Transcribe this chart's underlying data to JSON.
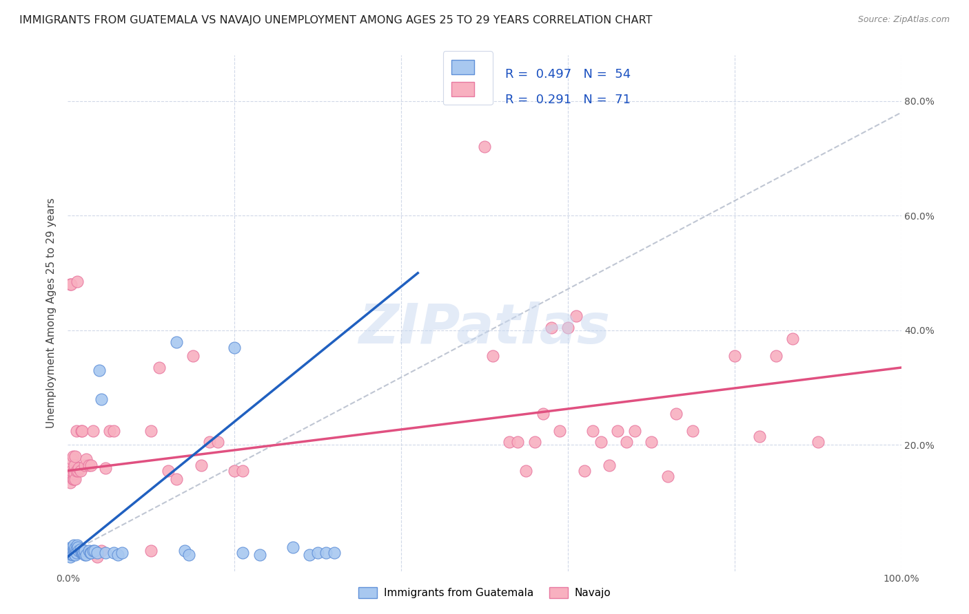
{
  "title": "IMMIGRANTS FROM GUATEMALA VS NAVAJO UNEMPLOYMENT AMONG AGES 25 TO 29 YEARS CORRELATION CHART",
  "source": "Source: ZipAtlas.com",
  "ylabel": "Unemployment Among Ages 25 to 29 years",
  "xlim": [
    0,
    1.0
  ],
  "ylim": [
    -0.02,
    0.88
  ],
  "R_blue": 0.497,
  "N_blue": 54,
  "R_pink": 0.291,
  "N_pink": 71,
  "blue_color": "#a8c8f0",
  "pink_color": "#f8b0c0",
  "blue_edge_color": "#6090d8",
  "pink_edge_color": "#e878a0",
  "blue_line_color": "#2060c0",
  "pink_line_color": "#e05080",
  "dash_line_color": "#b0b8c8",
  "watermark": "ZIPatlas",
  "watermark_color": "#c8d8f0",
  "background_color": "#ffffff",
  "grid_color": "#d0d8e8",
  "blue_scatter": [
    [
      0.001,
      0.015
    ],
    [
      0.002,
      0.01
    ],
    [
      0.002,
      0.02
    ],
    [
      0.003,
      0.01
    ],
    [
      0.003,
      0.005
    ],
    [
      0.004,
      0.01
    ],
    [
      0.004,
      0.015
    ],
    [
      0.005,
      0.02
    ],
    [
      0.005,
      0.01
    ],
    [
      0.006,
      0.015
    ],
    [
      0.006,
      0.008
    ],
    [
      0.007,
      0.02
    ],
    [
      0.007,
      0.025
    ],
    [
      0.008,
      0.015
    ],
    [
      0.008,
      0.01
    ],
    [
      0.009,
      0.02
    ],
    [
      0.009,
      0.008
    ],
    [
      0.01,
      0.018
    ],
    [
      0.01,
      0.012
    ],
    [
      0.011,
      0.025
    ],
    [
      0.012,
      0.022
    ],
    [
      0.013,
      0.015
    ],
    [
      0.015,
      0.018
    ],
    [
      0.016,
      0.012
    ],
    [
      0.017,
      0.012
    ],
    [
      0.018,
      0.012
    ],
    [
      0.018,
      0.015
    ],
    [
      0.019,
      0.012
    ],
    [
      0.02,
      0.008
    ],
    [
      0.02,
      0.015
    ],
    [
      0.022,
      0.008
    ],
    [
      0.025,
      0.015
    ],
    [
      0.027,
      0.012
    ],
    [
      0.028,
      0.012
    ],
    [
      0.03,
      0.015
    ],
    [
      0.032,
      0.015
    ],
    [
      0.035,
      0.012
    ],
    [
      0.038,
      0.33
    ],
    [
      0.04,
      0.28
    ],
    [
      0.045,
      0.012
    ],
    [
      0.055,
      0.012
    ],
    [
      0.06,
      0.008
    ],
    [
      0.065,
      0.012
    ],
    [
      0.13,
      0.38
    ],
    [
      0.14,
      0.015
    ],
    [
      0.145,
      0.008
    ],
    [
      0.2,
      0.37
    ],
    [
      0.21,
      0.012
    ],
    [
      0.23,
      0.008
    ],
    [
      0.27,
      0.022
    ],
    [
      0.29,
      0.008
    ],
    [
      0.3,
      0.012
    ],
    [
      0.31,
      0.012
    ],
    [
      0.32,
      0.012
    ]
  ],
  "pink_scatter": [
    [
      0.001,
      0.145
    ],
    [
      0.002,
      0.16
    ],
    [
      0.003,
      0.135
    ],
    [
      0.003,
      0.48
    ],
    [
      0.004,
      0.48
    ],
    [
      0.005,
      0.155
    ],
    [
      0.005,
      0.175
    ],
    [
      0.006,
      0.14
    ],
    [
      0.006,
      0.18
    ],
    [
      0.007,
      0.14
    ],
    [
      0.007,
      0.155
    ],
    [
      0.008,
      0.15
    ],
    [
      0.008,
      0.165
    ],
    [
      0.009,
      0.14
    ],
    [
      0.009,
      0.18
    ],
    [
      0.01,
      0.155
    ],
    [
      0.01,
      0.225
    ],
    [
      0.011,
      0.485
    ],
    [
      0.012,
      0.155
    ],
    [
      0.013,
      0.16
    ],
    [
      0.015,
      0.155
    ],
    [
      0.016,
      0.225
    ],
    [
      0.017,
      0.225
    ],
    [
      0.02,
      0.165
    ],
    [
      0.022,
      0.175
    ],
    [
      0.025,
      0.165
    ],
    [
      0.028,
      0.165
    ],
    [
      0.03,
      0.225
    ],
    [
      0.035,
      0.005
    ],
    [
      0.04,
      0.015
    ],
    [
      0.045,
      0.16
    ],
    [
      0.05,
      0.225
    ],
    [
      0.055,
      0.225
    ],
    [
      0.1,
      0.225
    ],
    [
      0.1,
      0.015
    ],
    [
      0.11,
      0.335
    ],
    [
      0.12,
      0.155
    ],
    [
      0.13,
      0.14
    ],
    [
      0.15,
      0.355
    ],
    [
      0.16,
      0.165
    ],
    [
      0.17,
      0.205
    ],
    [
      0.18,
      0.205
    ],
    [
      0.2,
      0.155
    ],
    [
      0.21,
      0.155
    ],
    [
      0.5,
      0.72
    ],
    [
      0.51,
      0.355
    ],
    [
      0.53,
      0.205
    ],
    [
      0.54,
      0.205
    ],
    [
      0.55,
      0.155
    ],
    [
      0.56,
      0.205
    ],
    [
      0.57,
      0.255
    ],
    [
      0.58,
      0.405
    ],
    [
      0.59,
      0.225
    ],
    [
      0.6,
      0.405
    ],
    [
      0.61,
      0.425
    ],
    [
      0.62,
      0.155
    ],
    [
      0.63,
      0.225
    ],
    [
      0.64,
      0.205
    ],
    [
      0.65,
      0.165
    ],
    [
      0.66,
      0.225
    ],
    [
      0.67,
      0.205
    ],
    [
      0.68,
      0.225
    ],
    [
      0.7,
      0.205
    ],
    [
      0.72,
      0.145
    ],
    [
      0.73,
      0.255
    ],
    [
      0.75,
      0.225
    ],
    [
      0.8,
      0.355
    ],
    [
      0.83,
      0.215
    ],
    [
      0.85,
      0.355
    ],
    [
      0.87,
      0.385
    ],
    [
      0.9,
      0.205
    ]
  ],
  "blue_trendline": [
    [
      0.0,
      0.005
    ],
    [
      0.42,
      0.5
    ]
  ],
  "pink_trendline": [
    [
      0.0,
      0.155
    ],
    [
      1.0,
      0.335
    ]
  ],
  "dash_trendline": [
    [
      0.0,
      0.01
    ],
    [
      1.0,
      0.78
    ]
  ]
}
